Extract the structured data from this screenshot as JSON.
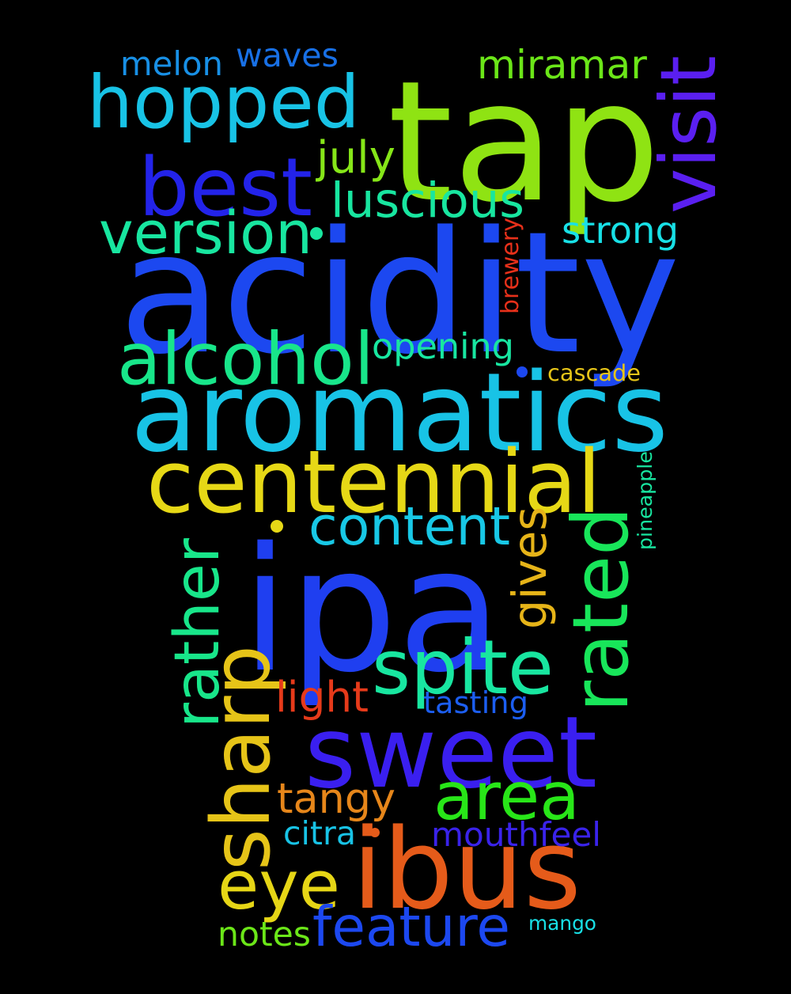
{
  "words": [
    {
      "id": "tap",
      "text": "tap",
      "color": "#8fe313"
    },
    {
      "id": "acidity",
      "text": "acidity",
      "color": "#1c48f0"
    },
    {
      "id": "aromatics",
      "text": "aromatics",
      "color": "#18c3e6"
    },
    {
      "id": "ipa",
      "text": "ipa",
      "color": "#1f3ff0"
    },
    {
      "id": "sweet",
      "text": "sweet",
      "color": "#3a1ff0"
    },
    {
      "id": "ibus",
      "text": "ibus",
      "color": "#e55b1a"
    },
    {
      "id": "centennial",
      "text": "centennial",
      "color": "#e6d816"
    },
    {
      "id": "hopped",
      "text": "hopped",
      "color": "#18c3e6"
    },
    {
      "id": "best",
      "text": "best",
      "color": "#2323ea"
    },
    {
      "id": "sharp",
      "text": "sharp",
      "color": "#e6c418"
    },
    {
      "id": "rated",
      "text": "rated",
      "color": "#18e65a"
    },
    {
      "id": "rather",
      "text": "rather",
      "color": "#18e68a"
    },
    {
      "id": "spite",
      "text": "spite",
      "color": "#18e6a0"
    },
    {
      "id": "eye",
      "text": "eye",
      "color": "#e6d616"
    },
    {
      "id": "area",
      "text": "area",
      "color": "#28e618"
    },
    {
      "id": "alcohol",
      "text": "alcohol",
      "color": "#18e68a"
    },
    {
      "id": "content",
      "text": "content",
      "color": "#18c8e6"
    },
    {
      "id": "feature",
      "text": "feature",
      "color": "#1c48f0"
    },
    {
      "id": "version",
      "text": "version",
      "color": "#18e6a0"
    },
    {
      "id": "visit",
      "text": "visit",
      "color": "#5a1ff0"
    },
    {
      "id": "miramar",
      "text": "miramar",
      "color": "#6be618"
    },
    {
      "id": "luscious",
      "text": "luscious",
      "color": "#18e6a0"
    },
    {
      "id": "tangy",
      "text": "tangy",
      "color": "#e6861a"
    },
    {
      "id": "gives",
      "text": "gives",
      "color": "#e6b418"
    },
    {
      "id": "mouthfeel",
      "text": "mouthfeel",
      "color": "#3a23ea"
    },
    {
      "id": "opening",
      "text": "opening",
      "color": "#18e6a0"
    },
    {
      "id": "melon",
      "text": "melon",
      "color": "#1890e6"
    },
    {
      "id": "waves",
      "text": "waves",
      "color": "#1870e6"
    },
    {
      "id": "july",
      "text": "july",
      "color": "#86e618"
    },
    {
      "id": "strong",
      "text": "strong",
      "color": "#18e0e6"
    },
    {
      "id": "notes",
      "text": "notes",
      "color": "#6be618"
    },
    {
      "id": "light",
      "text": "light",
      "color": "#e63a1a"
    },
    {
      "id": "tasting",
      "text": "tasting",
      "color": "#1c5ef0"
    },
    {
      "id": "cascade",
      "text": "cascade",
      "color": "#e6c418"
    },
    {
      "id": "citra",
      "text": "citra",
      "color": "#18c3e6"
    },
    {
      "id": "mango",
      "text": "mango",
      "color": "#18e0e6"
    },
    {
      "id": "brewery",
      "text": "brewery",
      "color": "#e6301a"
    },
    {
      "id": "pineapple",
      "text": "pineapple",
      "color": "#18e6a0"
    }
  ]
}
